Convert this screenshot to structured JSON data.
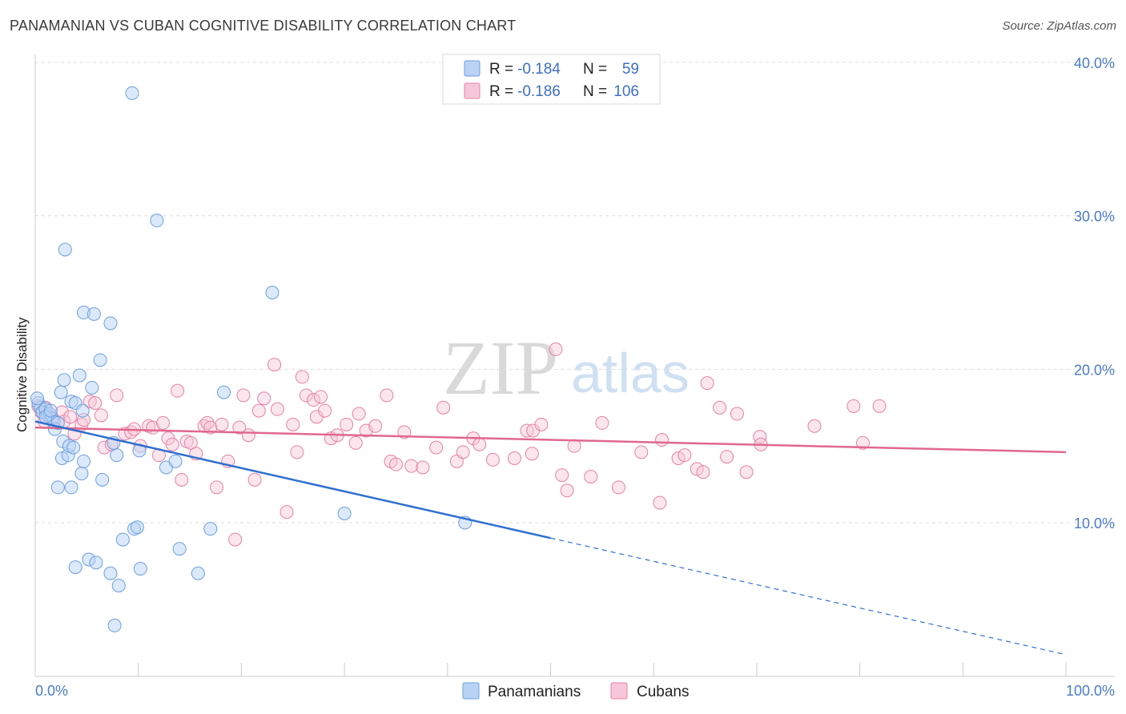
{
  "title": "PANAMANIAN VS CUBAN COGNITIVE DISABILITY CORRELATION CHART",
  "source": "Source: ZipAtlas.com",
  "watermark": {
    "zip": "ZIP",
    "atlas": "atlas"
  },
  "colors": {
    "blue": "#6b9fe0",
    "blue_fill": "#b9d3f5",
    "blue_line": "#2f6fd0",
    "pink": "#e87fa5",
    "pink_fill": "#f6c7d8",
    "pink_line": "#e0688f",
    "tick_label": "#4a7bc8",
    "grid": "#dddddd"
  },
  "legend": {
    "rows": [
      {
        "r_label": "R =",
        "r_value": "-0.184",
        "n_label": "N =",
        "n_value": "59"
      },
      {
        "r_label": "R =",
        "r_value": "-0.186",
        "n_label": "N =",
        "n_value": "106"
      }
    ]
  },
  "bottom_legend": [
    "Panamanians",
    "Cubans"
  ],
  "chart_data": {
    "type": "scatter",
    "title": "PANAMANIAN VS CUBAN COGNITIVE DISABILITY CORRELATION CHART",
    "xlabel": "",
    "ylabel": "Cognitive Disability",
    "xlim": [
      0,
      100
    ],
    "ylim": [
      2,
      42
    ],
    "x_tick_labels": [
      "0.0%",
      "100.0%"
    ],
    "y_ticks": [
      10,
      20,
      30,
      40
    ],
    "y_tick_labels": [
      "10.0%",
      "20.0%",
      "30.0%",
      "40.0%"
    ],
    "grid": "horizontal dashed",
    "legend_position": "top-center",
    "series": [
      {
        "name": "Panamanians",
        "color": "#6b9fe0",
        "r": -0.184,
        "n": 59,
        "trend": {
          "x0": 0,
          "y0": 16.6,
          "x1": 50,
          "y1": 9.0,
          "dashed_to": {
            "x": 100,
            "y": 1.4
          }
        },
        "points": [
          [
            0.3,
            17.8
          ],
          [
            0.5,
            17.5
          ],
          [
            0.7,
            17.2
          ],
          [
            1.0,
            17.4
          ],
          [
            1.2,
            17.0
          ],
          [
            1.4,
            17.1
          ],
          [
            1.6,
            16.8
          ],
          [
            1.8,
            16.6
          ],
          [
            1.9,
            16.1
          ],
          [
            2.2,
            16.5
          ],
          [
            2.5,
            18.5
          ],
          [
            2.6,
            14.2
          ],
          [
            2.7,
            15.3
          ],
          [
            2.8,
            19.3
          ],
          [
            3.2,
            14.4
          ],
          [
            3.3,
            15.0
          ],
          [
            2.2,
            12.3
          ],
          [
            3.5,
            12.3
          ],
          [
            3.5,
            17.9
          ],
          [
            3.7,
            14.9
          ],
          [
            3.9,
            17.8
          ],
          [
            4.3,
            19.6
          ],
          [
            4.5,
            13.2
          ],
          [
            4.6,
            17.3
          ],
          [
            4.7,
            14.0
          ],
          [
            3.9,
            7.1
          ],
          [
            5.5,
            18.8
          ],
          [
            5.2,
            7.6
          ],
          [
            5.9,
            7.4
          ],
          [
            6.3,
            20.6
          ],
          [
            6.5,
            12.8
          ],
          [
            4.7,
            23.7
          ],
          [
            5.7,
            23.6
          ],
          [
            7.3,
            23.0
          ],
          [
            2.9,
            27.8
          ],
          [
            7.3,
            6.7
          ],
          [
            7.6,
            15.2
          ],
          [
            7.9,
            14.4
          ],
          [
            8.1,
            5.9
          ],
          [
            7.7,
            3.3
          ],
          [
            8.5,
            8.9
          ],
          [
            9.4,
            38.0
          ],
          [
            9.6,
            9.6
          ],
          [
            9.9,
            9.7
          ],
          [
            10.1,
            14.7
          ],
          [
            10.2,
            7.0
          ],
          [
            11.8,
            29.7
          ],
          [
            12.7,
            13.6
          ],
          [
            13.6,
            14.0
          ],
          [
            14.0,
            8.3
          ],
          [
            15.8,
            6.7
          ],
          [
            17.0,
            9.6
          ],
          [
            18.3,
            18.5
          ],
          [
            23.0,
            25.0
          ],
          [
            30.0,
            10.6
          ],
          [
            41.7,
            10.0
          ],
          [
            0.2,
            18.1
          ],
          [
            1.0,
            16.9
          ],
          [
            1.5,
            17.3
          ]
        ]
      },
      {
        "name": "Cubans",
        "color": "#e87fa5",
        "r": -0.186,
        "n": 106,
        "trend": {
          "x0": 0,
          "y0": 16.2,
          "x1": 100,
          "y1": 14.6
        },
        "points": [
          [
            0.3,
            17.6
          ],
          [
            0.6,
            17.2
          ],
          [
            1.0,
            17.5
          ],
          [
            1.3,
            17.0
          ],
          [
            1.7,
            16.8
          ],
          [
            2.2,
            16.5
          ],
          [
            2.6,
            17.2
          ],
          [
            2.8,
            16.6
          ],
          [
            3.4,
            16.9
          ],
          [
            3.8,
            15.8
          ],
          [
            4.5,
            16.4
          ],
          [
            4.7,
            16.7
          ],
          [
            5.3,
            17.9
          ],
          [
            5.8,
            17.8
          ],
          [
            6.4,
            17.0
          ],
          [
            6.7,
            14.9
          ],
          [
            7.4,
            15.1
          ],
          [
            7.9,
            18.3
          ],
          [
            8.7,
            15.8
          ],
          [
            9.3,
            15.9
          ],
          [
            9.6,
            16.1
          ],
          [
            10.2,
            15.0
          ],
          [
            11.0,
            16.3
          ],
          [
            11.4,
            16.2
          ],
          [
            12.0,
            14.4
          ],
          [
            12.4,
            16.5
          ],
          [
            12.9,
            15.5
          ],
          [
            13.3,
            15.1
          ],
          [
            13.8,
            18.6
          ],
          [
            14.2,
            12.8
          ],
          [
            14.7,
            15.3
          ],
          [
            15.1,
            15.2
          ],
          [
            15.6,
            14.5
          ],
          [
            16.4,
            16.3
          ],
          [
            16.7,
            16.5
          ],
          [
            17.0,
            16.2
          ],
          [
            17.6,
            12.3
          ],
          [
            18.1,
            16.4
          ],
          [
            18.7,
            14.0
          ],
          [
            19.4,
            8.9
          ],
          [
            19.8,
            16.2
          ],
          [
            20.2,
            18.3
          ],
          [
            20.7,
            15.7
          ],
          [
            21.3,
            12.8
          ],
          [
            21.7,
            17.3
          ],
          [
            22.2,
            18.1
          ],
          [
            23.2,
            20.3
          ],
          [
            23.5,
            17.4
          ],
          [
            24.4,
            10.7
          ],
          [
            25.0,
            16.4
          ],
          [
            25.4,
            14.6
          ],
          [
            25.9,
            19.5
          ],
          [
            26.3,
            18.3
          ],
          [
            27.0,
            18.0
          ],
          [
            27.3,
            16.9
          ],
          [
            27.7,
            18.2
          ],
          [
            28.1,
            17.3
          ],
          [
            28.7,
            15.5
          ],
          [
            29.3,
            15.7
          ],
          [
            30.2,
            16.4
          ],
          [
            31.1,
            15.2
          ],
          [
            31.4,
            17.1
          ],
          [
            32.1,
            16.0
          ],
          [
            33.0,
            16.3
          ],
          [
            34.1,
            18.3
          ],
          [
            34.5,
            14.0
          ],
          [
            35.0,
            13.8
          ],
          [
            35.8,
            15.9
          ],
          [
            36.5,
            13.7
          ],
          [
            37.6,
            13.6
          ],
          [
            38.9,
            14.9
          ],
          [
            39.6,
            17.5
          ],
          [
            40.9,
            14.0
          ],
          [
            41.5,
            14.6
          ],
          [
            42.5,
            15.5
          ],
          [
            43.1,
            15.1
          ],
          [
            44.4,
            14.1
          ],
          [
            46.5,
            14.2
          ],
          [
            47.7,
            16.0
          ],
          [
            48.2,
            14.5
          ],
          [
            48.3,
            16.0
          ],
          [
            49.1,
            16.4
          ],
          [
            50.5,
            21.3
          ],
          [
            51.1,
            13.1
          ],
          [
            51.6,
            12.1
          ],
          [
            52.3,
            15.0
          ],
          [
            53.9,
            13.0
          ],
          [
            55.0,
            16.5
          ],
          [
            56.6,
            12.3
          ],
          [
            58.8,
            14.6
          ],
          [
            60.6,
            11.3
          ],
          [
            60.8,
            15.4
          ],
          [
            62.4,
            14.2
          ],
          [
            63.0,
            14.4
          ],
          [
            64.2,
            13.5
          ],
          [
            64.8,
            13.3
          ],
          [
            65.2,
            19.1
          ],
          [
            66.4,
            17.5
          ],
          [
            67.1,
            14.3
          ],
          [
            68.1,
            17.1
          ],
          [
            69.0,
            13.3
          ],
          [
            70.3,
            15.6
          ],
          [
            70.4,
            15.1
          ],
          [
            75.6,
            16.3
          ],
          [
            79.4,
            17.6
          ],
          [
            80.3,
            15.2
          ],
          [
            81.9,
            17.6
          ],
          [
            0.9,
            16.6
          ]
        ]
      }
    ]
  }
}
